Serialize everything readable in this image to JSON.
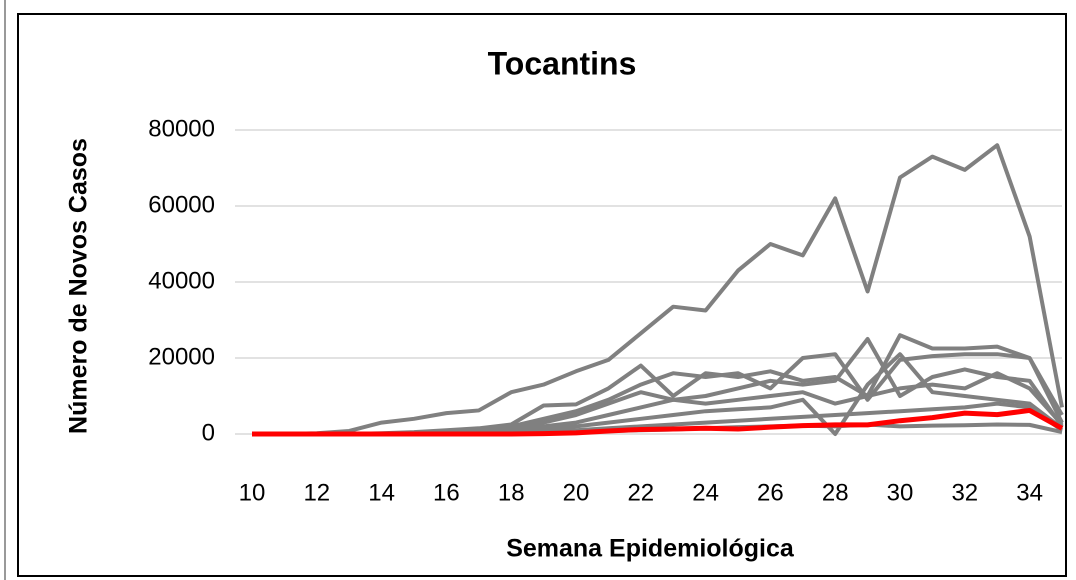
{
  "chart_data": {
    "type": "line",
    "title": "Tocantins",
    "x_label": "Semana Epidemiológica",
    "y_label": "Número de Novos Casos",
    "x": [
      10,
      11,
      12,
      13,
      14,
      15,
      16,
      17,
      18,
      19,
      20,
      21,
      22,
      23,
      24,
      25,
      26,
      27,
      28,
      29,
      30,
      31,
      32,
      33,
      34,
      35
    ],
    "xlim": [
      10,
      35
    ],
    "xticks": [
      10,
      12,
      14,
      16,
      18,
      20,
      22,
      24,
      26,
      28,
      30,
      32,
      34
    ],
    "ylim": [
      0,
      80000
    ],
    "yticks": [
      0,
      20000,
      40000,
      60000,
      80000
    ],
    "grid": true,
    "series": [
      {
        "color": "#808080",
        "values": [
          0,
          0,
          200,
          800,
          3000,
          4000,
          5500,
          6200,
          11000,
          13000,
          16500,
          19500,
          26500,
          33500,
          32500,
          43000,
          50000,
          47000,
          62000,
          37500,
          67500,
          73000,
          69500,
          76000,
          52000,
          7000
        ]
      },
      {
        "color": "#808080",
        "values": [
          0,
          0,
          0,
          0,
          200,
          500,
          1000,
          1500,
          2500,
          7500,
          7800,
          12000,
          18000,
          10000,
          16000,
          15000,
          16500,
          14000,
          15000,
          10000,
          26000,
          22500,
          22500,
          23000,
          20000,
          5000
        ]
      },
      {
        "color": "#808080",
        "values": [
          0,
          0,
          0,
          0,
          0,
          200,
          500,
          1000,
          2000,
          4000,
          6000,
          9000,
          13000,
          16000,
          15000,
          16000,
          12000,
          20000,
          21000,
          9000,
          19500,
          20500,
          21000,
          21000,
          20000,
          3000
        ]
      },
      {
        "color": "#808080",
        "values": [
          0,
          0,
          0,
          0,
          0,
          100,
          300,
          800,
          1500,
          3000,
          5000,
          8000,
          11000,
          9000,
          10000,
          12000,
          14000,
          13000,
          14000,
          25000,
          10000,
          15000,
          17000,
          15000,
          14000,
          2000
        ]
      },
      {
        "color": "#808080",
        "values": [
          0,
          0,
          0,
          0,
          0,
          0,
          200,
          500,
          1000,
          2000,
          3000,
          5000,
          7000,
          9000,
          8000,
          9000,
          10000,
          11000,
          8000,
          10000,
          12000,
          13000,
          12000,
          16000,
          12000,
          2500
        ]
      },
      {
        "color": "#808080",
        "values": [
          0,
          0,
          0,
          0,
          0,
          0,
          100,
          300,
          600,
          1200,
          2000,
          3000,
          4000,
          5000,
          6000,
          6500,
          7000,
          9000,
          0,
          13000,
          21000,
          11000,
          10000,
          9000,
          8000,
          1500
        ]
      },
      {
        "color": "#808080",
        "values": [
          0,
          0,
          0,
          0,
          0,
          0,
          0,
          100,
          300,
          600,
          1000,
          1500,
          2000,
          2500,
          3000,
          3500,
          4000,
          4500,
          5000,
          5500,
          6000,
          6500,
          7000,
          8000,
          7000,
          1000
        ]
      },
      {
        "color": "#808080",
        "values": [
          0,
          0,
          0,
          0,
          0,
          0,
          0,
          0,
          100,
          300,
          500,
          800,
          1000,
          1200,
          1500,
          1800,
          2000,
          2200,
          2000,
          2500,
          2000,
          2200,
          2300,
          2500,
          2400,
          500
        ]
      },
      {
        "color": "#ff0000",
        "values": [
          0,
          0,
          0,
          0,
          0,
          0,
          0,
          0,
          0,
          100,
          300,
          800,
          1200,
          1300,
          1500,
          1300,
          1800,
          2200,
          2400,
          2400,
          3500,
          4300,
          5500,
          5100,
          6200,
          1500
        ]
      }
    ]
  }
}
